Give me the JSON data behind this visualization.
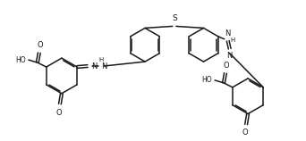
{
  "bg": "#ffffff",
  "lc": "#1a1a1a",
  "lw": 1.1,
  "fs": 6.0,
  "dpi": 100,
  "fw": 3.42,
  "fh": 1.58,
  "xlim": [
    0,
    342
  ],
  "ylim": [
    0,
    158
  ]
}
